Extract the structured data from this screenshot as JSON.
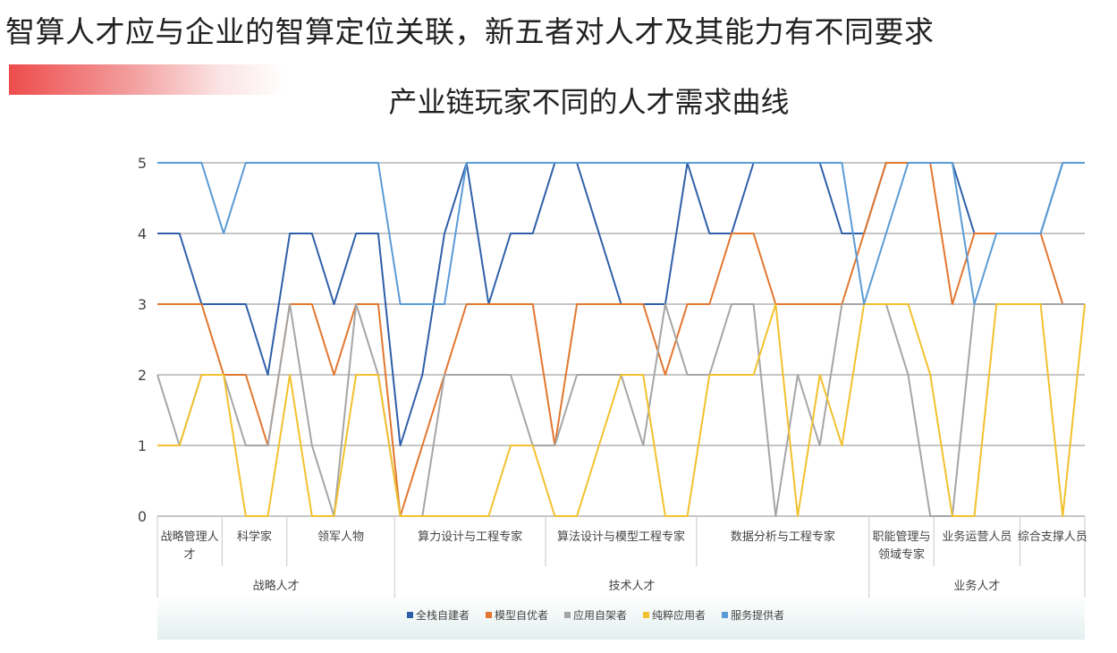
{
  "slide": {
    "title": "智算人才应与企业的智算定位关联，新五者对人才及其能力有不同要求"
  },
  "chart_data": {
    "type": "line",
    "title": "产业链玩家不同的人才需求曲线",
    "xlabel": "",
    "ylabel": "",
    "ylim": [
      0,
      5
    ],
    "yticks": [
      "0",
      "1",
      "2",
      "3",
      "4",
      "5"
    ],
    "grid": true,
    "legend_position": "bottom",
    "categories_level1": [
      "战略管理人才",
      "科学家",
      "领军人物",
      "算力设计与工程专家",
      "算法设计与模型工程专家",
      "数据分析与工程专家",
      "职能管理与领域专家",
      "业务运营人员",
      "综合支撑人员"
    ],
    "categories_level1_display": [
      [
        "战略管理人",
        "才"
      ],
      [
        "科学家"
      ],
      [
        "领军人物"
      ],
      [
        "算力设计与工程专家"
      ],
      [
        "算法设计与模型工程专家"
      ],
      [
        "数据分析与工程专家"
      ],
      [
        "职能管理与",
        "领域专家"
      ],
      [
        "业务运营人员"
      ],
      [
        "综合支撑人员"
      ]
    ],
    "categories_level1_counts": [
      3,
      3,
      5,
      7,
      7,
      8,
      3,
      4,
      3
    ],
    "categories_level2": [
      "战略人才",
      "技术人才",
      "业务人才"
    ],
    "categories_level2_counts": [
      3,
      3,
      3
    ],
    "series": [
      {
        "name": "全栈自建者",
        "color": "#2E5FA8",
        "values": [
          4,
          4,
          3,
          3,
          3,
          2,
          4,
          4,
          3,
          4,
          4,
          1,
          2,
          4,
          5,
          3,
          4,
          4,
          5,
          5,
          4,
          3,
          3,
          3,
          5,
          4,
          4,
          5,
          5,
          5,
          5,
          4,
          4,
          5,
          5,
          5,
          5,
          4,
          4,
          4,
          4,
          5,
          5
        ]
      },
      {
        "name": "模型自优者",
        "color": "#E2762E",
        "values": [
          3,
          3,
          3,
          2,
          2,
          1,
          3,
          3,
          2,
          3,
          3,
          0,
          1,
          2,
          3,
          3,
          3,
          3,
          1,
          3,
          3,
          3,
          3,
          2,
          3,
          3,
          4,
          4,
          3,
          3,
          3,
          3,
          4,
          5,
          5,
          5,
          3,
          4,
          4,
          4,
          4,
          3,
          3
        ]
      },
      {
        "name": "应用自架者",
        "color": "#A5A5A5",
        "values": [
          2,
          1,
          2,
          2,
          1,
          1,
          3,
          1,
          0,
          3,
          2,
          0,
          0,
          2,
          2,
          2,
          2,
          1,
          1,
          2,
          2,
          2,
          1,
          3,
          2,
          2,
          3,
          3,
          0,
          2,
          1,
          3,
          3,
          3,
          2,
          0,
          0,
          3,
          3,
          3,
          3,
          3,
          3
        ]
      },
      {
        "name": "纯粹应用者",
        "color": "#F2C12E",
        "values": [
          1,
          1,
          2,
          2,
          0,
          0,
          2,
          0,
          0,
          2,
          2,
          0,
          0,
          0,
          0,
          0,
          1,
          1,
          0,
          0,
          1,
          2,
          2,
          0,
          0,
          2,
          2,
          2,
          3,
          0,
          2,
          1,
          3,
          3,
          3,
          2,
          0,
          0,
          3,
          3,
          3,
          0,
          3
        ]
      },
      {
        "name": "服务提供者",
        "color": "#5B9BD5",
        "values": [
          5,
          5,
          5,
          4,
          5,
          5,
          5,
          5,
          5,
          5,
          5,
          3,
          3,
          3,
          5,
          5,
          5,
          5,
          5,
          5,
          5,
          5,
          5,
          5,
          5,
          5,
          5,
          5,
          5,
          5,
          5,
          5,
          3,
          4,
          5,
          5,
          5,
          3,
          4,
          4,
          4,
          5,
          5
        ]
      }
    ]
  }
}
